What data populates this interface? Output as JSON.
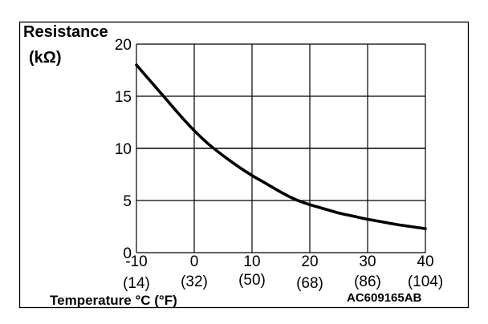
{
  "chart_data": {
    "type": "line",
    "ylabel_line1": "Resistance",
    "ylabel_line2": "(kΩ)",
    "xlabel": "Temperature °C (°F)",
    "figure_code": "AC609165AB",
    "xlim": [
      -10,
      40
    ],
    "ylim": [
      0,
      20
    ],
    "x_ticks": [
      -10,
      0,
      10,
      20,
      30,
      40
    ],
    "x_tick_labels": [
      "-10",
      "0",
      "10",
      "20",
      "30",
      "40"
    ],
    "x_tick_labels_f": [
      "(14)",
      "(32)",
      "(50)",
      "(68)",
      "(86)",
      "(104)"
    ],
    "y_ticks": [
      0,
      5,
      10,
      15,
      20
    ],
    "y_tick_labels": [
      "0",
      "5",
      "10",
      "15",
      "20"
    ],
    "grid": true,
    "series": [
      {
        "x": [
          -10,
          -7.5,
          -5,
          -2.5,
          0,
          2.5,
          5,
          7.5,
          10,
          12.5,
          15,
          17.5,
          20,
          22.5,
          25,
          27.5,
          30,
          32.5,
          35,
          37.5,
          40
        ],
        "y": [
          18.0,
          16.4,
          14.8,
          13.2,
          11.7,
          10.4,
          9.3,
          8.3,
          7.4,
          6.6,
          5.8,
          5.1,
          4.6,
          4.2,
          3.8,
          3.5,
          3.2,
          2.95,
          2.7,
          2.5,
          2.3
        ]
      }
    ]
  }
}
